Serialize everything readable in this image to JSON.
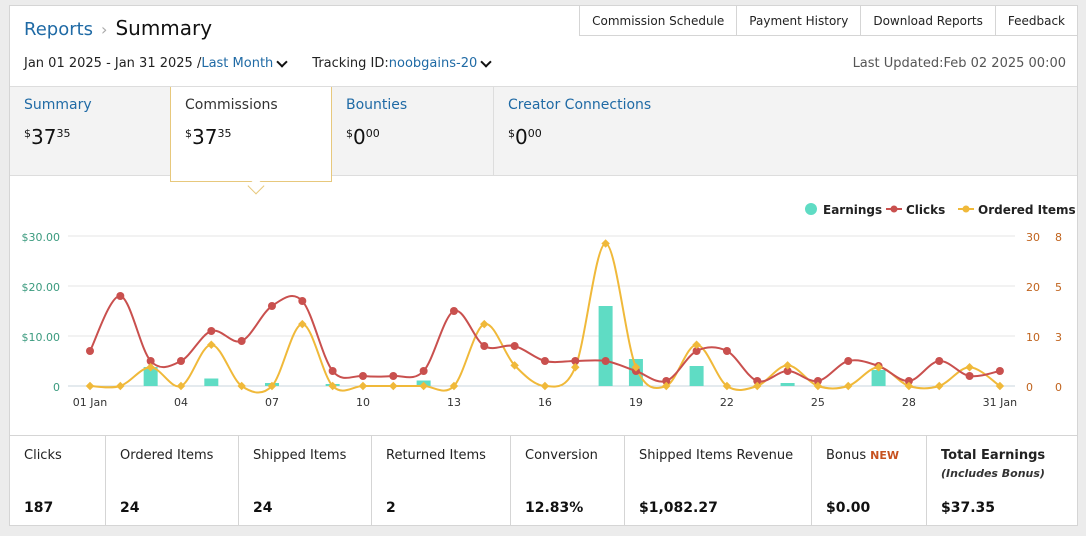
{
  "breadcrumb": {
    "parent": "Reports",
    "current": "Summary"
  },
  "top_actions": [
    "Commission Schedule",
    "Payment History",
    "Download Reports",
    "Feedback"
  ],
  "filters": {
    "date_range": "Jan 01 2025 - Jan 31 2025 /",
    "period": "Last Month",
    "tracking_label": "Tracking ID:",
    "tracking_id": "noobgains-20"
  },
  "last_updated": "Last Updated:Feb 02 2025 00:00",
  "tabs": [
    {
      "title": "Summary",
      "currency": "$",
      "whole": "37",
      "cents": "35"
    },
    {
      "title": "Commissions",
      "currency": "$",
      "whole": "37",
      "cents": "35"
    },
    {
      "title": "Bounties",
      "currency": "$",
      "whole": "0",
      "cents": "00"
    },
    {
      "title": "Creator Connections",
      "currency": "$",
      "whole": "0",
      "cents": "00"
    }
  ],
  "chart_data": {
    "type": "line",
    "legend": [
      "Earnings",
      "Clicks",
      "Ordered Items"
    ],
    "legend_position": "top-right",
    "colors": {
      "earnings": "#5fdcc4",
      "clicks": "#c9504e",
      "ordered": "#f0b93a",
      "axis_left": "#3a9a7e",
      "axis_right": "#c0631d"
    },
    "x_labels": [
      "01 Jan",
      "04",
      "07",
      "10",
      "13",
      "16",
      "19",
      "22",
      "25",
      "28",
      "31 Jan"
    ],
    "left_axis_labels": [
      "$30.00",
      "$20.00",
      "$10.00",
      "0"
    ],
    "clicks_axis_labels": [
      "30",
      "20",
      "10",
      "0"
    ],
    "ordered_axis_labels": [
      "8",
      "5",
      "3",
      "0"
    ],
    "earnings": [
      0,
      0,
      3.8,
      0,
      1.5,
      0,
      0.6,
      0,
      0.4,
      0,
      0,
      1.1,
      0,
      0,
      0,
      0,
      0,
      16,
      5.4,
      0,
      4,
      0,
      0,
      0.6,
      0,
      0,
      3.2,
      0,
      0,
      0,
      0
    ],
    "clicks": [
      7,
      18,
      5,
      5,
      11,
      9,
      16,
      17,
      3,
      2,
      2,
      3,
      15,
      8,
      8,
      5,
      5,
      5,
      3,
      1,
      7,
      7,
      1,
      3,
      1,
      5,
      4,
      1,
      5,
      2,
      3
    ],
    "ordered_items": [
      0,
      0,
      1,
      0,
      2.2,
      0,
      0,
      3.3,
      0,
      0,
      0,
      0,
      0,
      3.3,
      1.1,
      0,
      1,
      7.6,
      1,
      0,
      2.2,
      0,
      0,
      1.1,
      0,
      0,
      1,
      0,
      0,
      1,
      0
    ]
  },
  "stats": [
    {
      "label": "Clicks",
      "value": "187"
    },
    {
      "label": "Ordered Items",
      "value": "24"
    },
    {
      "label": "Shipped Items",
      "value": "24"
    },
    {
      "label": "Returned Items",
      "value": "2"
    },
    {
      "label": "Conversion",
      "value": "12.83%"
    },
    {
      "label": "Shipped Items Revenue",
      "value": "$1,082.27"
    },
    {
      "label": "Bonus",
      "badge": "NEW",
      "value": "$0.00"
    },
    {
      "label": "Total Earnings",
      "sublabel": "(Includes Bonus)",
      "value": "$37.35"
    }
  ]
}
